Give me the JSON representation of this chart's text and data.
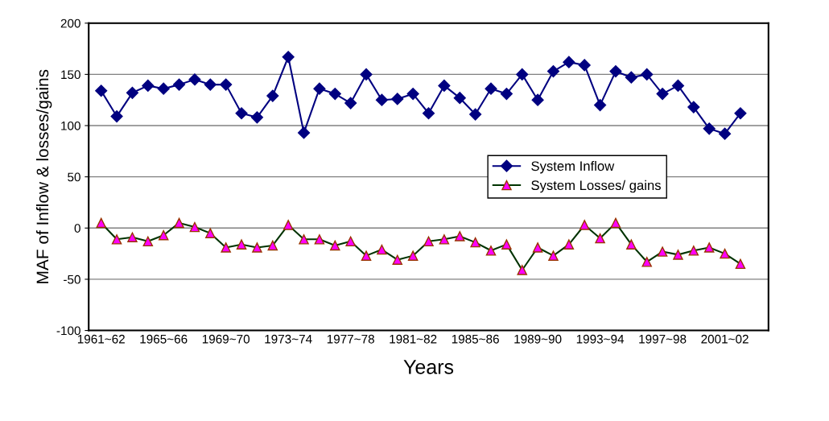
{
  "chart_data": {
    "type": "line",
    "xlabel": "Years",
    "ylabel": "MAF of Inflow & losses/gains",
    "categories": [
      "1961~62",
      null,
      null,
      null,
      "1965~66",
      null,
      null,
      null,
      "1969~70",
      null,
      null,
      null,
      "1973~74",
      null,
      null,
      null,
      "1977~78",
      null,
      null,
      null,
      "1981~82",
      null,
      null,
      null,
      "1985~86",
      null,
      null,
      null,
      "1989~90",
      null,
      null,
      null,
      "1993~94",
      null,
      null,
      null,
      "1997~98",
      null,
      null,
      null,
      "2001~02",
      null
    ],
    "series": [
      {
        "name": "System Inflow",
        "color": "#000080",
        "marker": "diamond",
        "values": [
          134,
          109,
          132,
          139,
          136,
          140,
          145,
          140,
          140,
          112,
          108,
          129,
          167,
          93,
          136,
          131,
          122,
          150,
          125,
          126,
          131,
          112,
          139,
          127,
          111,
          136,
          131,
          150,
          125,
          153,
          162,
          159,
          120,
          153,
          147,
          150,
          131,
          139,
          118,
          97,
          92,
          112
        ]
      },
      {
        "name": "System Losses/ gains",
        "color": "#ff00ff",
        "marker": "triangle",
        "values": [
          5,
          -11,
          -9,
          -13,
          -7,
          5,
          1,
          -5,
          -19,
          -16,
          -19,
          -17,
          3,
          -11,
          -11,
          -17,
          -13,
          -27,
          -21,
          -31,
          -27,
          -13,
          -11,
          -8,
          -14,
          -22,
          -16,
          -41,
          -19,
          -27,
          -16,
          3,
          -10,
          5,
          -16,
          -33,
          -23,
          -26,
          -22,
          -19,
          -25,
          -35
        ]
      }
    ],
    "ylim": [
      -100,
      200
    ],
    "yticks": [
      -100,
      -50,
      0,
      50,
      100,
      150,
      200
    ],
    "grid": "y",
    "legend": "right",
    "line_style": "solid"
  }
}
